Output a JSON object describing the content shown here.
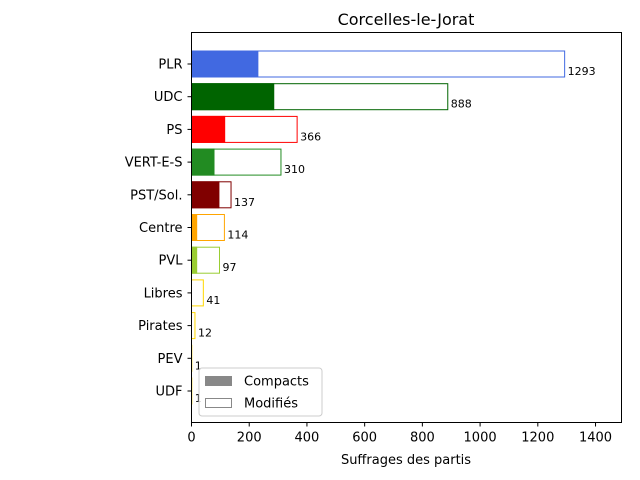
{
  "chart_data": {
    "type": "bar",
    "orientation": "horizontal",
    "title": "Corcelles-le-Jorat",
    "xlabel": "Suffrages des partis",
    "ylabel": "",
    "xlim": [
      0,
      1490
    ],
    "xticks": [
      0,
      200,
      400,
      600,
      800,
      1000,
      1200,
      1400
    ],
    "grid": false,
    "legend_position": "lower-left",
    "categories": [
      "PLR",
      "UDC",
      "PS",
      "VERT-E-S",
      "PST/Sol.",
      "Centre",
      "PVL",
      "Libres",
      "Pirates",
      "PEV",
      "UDF"
    ],
    "colors": [
      "#4169E1",
      "#006400",
      "#FF0000",
      "#228B22",
      "#800000",
      "#FFA500",
      "#9ACD32",
      "#FFD700",
      "#FFD700",
      "#FFD700",
      "#FFD700"
    ],
    "series": [
      {
        "name": "Compacts",
        "values": [
          230,
          285,
          115,
          78,
          95,
          18,
          18,
          0,
          0,
          0,
          0
        ]
      },
      {
        "name": "Modifiés",
        "values": [
          1063,
          603,
          251,
          232,
          42,
          96,
          79,
          41,
          12,
          1,
          1
        ]
      }
    ],
    "totals": [
      1293,
      888,
      366,
      310,
      137,
      114,
      97,
      41,
      12,
      1,
      1
    ],
    "legend": [
      {
        "label": "Compacts",
        "swatch": "filled",
        "color": "#888888"
      },
      {
        "label": "Modifiés",
        "swatch": "outline",
        "color": "#888888"
      }
    ]
  }
}
